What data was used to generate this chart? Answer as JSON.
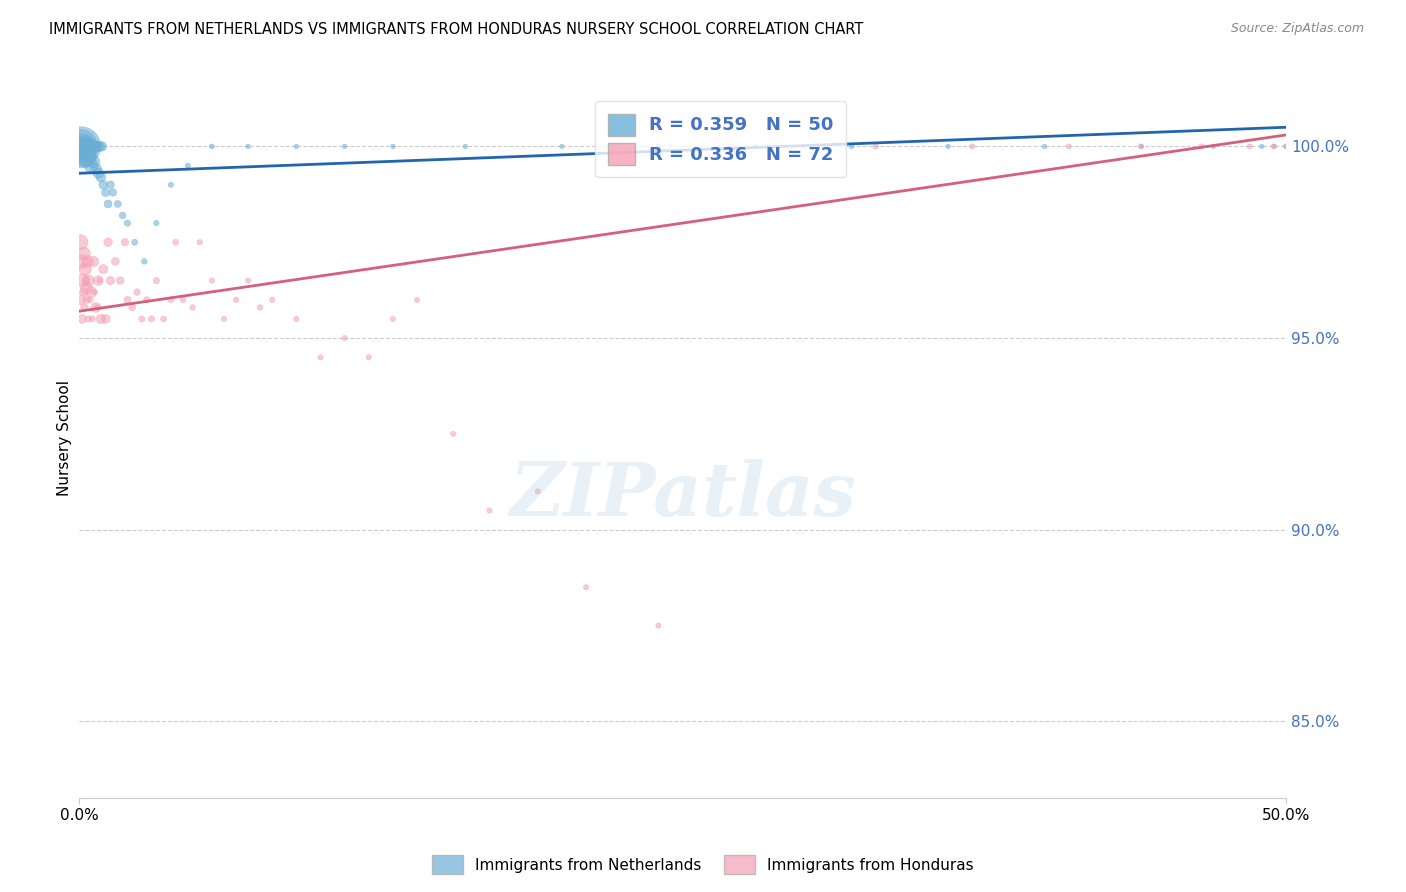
{
  "title": "IMMIGRANTS FROM NETHERLANDS VS IMMIGRANTS FROM HONDURAS NURSERY SCHOOL CORRELATION CHART",
  "source": "Source: ZipAtlas.com",
  "ylabel": "Nursery School",
  "ytick_labels": [
    "85.0%",
    "90.0%",
    "95.0%",
    "100.0%"
  ],
  "ytick_values": [
    85.0,
    90.0,
    95.0,
    100.0
  ],
  "xmin": 0.0,
  "xmax": 50.0,
  "ymin": 83.0,
  "ymax": 101.8,
  "R_netherlands": 0.359,
  "N_netherlands": 50,
  "R_honduras": 0.336,
  "N_honduras": 72,
  "color_netherlands": "#6aaed6",
  "color_honduras": "#f4a0b5",
  "line_color_netherlands": "#2166ac",
  "line_color_honduras": "#d6607a",
  "nl_trend": [
    99.3,
    100.5
  ],
  "hn_trend": [
    95.7,
    100.3
  ],
  "netherlands_x": [
    0.05,
    0.1,
    0.15,
    0.2,
    0.25,
    0.3,
    0.35,
    0.4,
    0.45,
    0.5,
    0.55,
    0.6,
    0.65,
    0.7,
    0.75,
    0.8,
    0.85,
    0.9,
    0.95,
    1.0,
    1.1,
    1.2,
    1.3,
    1.4,
    1.6,
    1.8,
    2.0,
    2.3,
    2.7,
    3.2,
    3.8,
    4.5,
    5.5,
    7.0,
    9.0,
    11.0,
    13.0,
    16.0,
    20.0,
    24.0,
    28.0,
    32.0,
    36.0,
    40.0,
    44.0,
    47.0,
    49.0,
    49.5,
    50.0,
    0.08
  ],
  "netherlands_y": [
    100.0,
    99.8,
    100.0,
    99.9,
    100.0,
    99.7,
    100.0,
    99.8,
    100.0,
    99.5,
    100.0,
    99.6,
    100.0,
    99.4,
    100.0,
    99.3,
    100.0,
    99.2,
    100.0,
    99.0,
    98.8,
    98.5,
    99.0,
    98.8,
    98.5,
    98.2,
    98.0,
    97.5,
    97.0,
    98.0,
    99.0,
    99.5,
    100.0,
    100.0,
    100.0,
    100.0,
    100.0,
    100.0,
    100.0,
    100.0,
    100.0,
    100.0,
    100.0,
    100.0,
    100.0,
    100.0,
    100.0,
    100.0,
    100.0,
    100.0
  ],
  "netherlands_sizes": [
    600,
    400,
    300,
    250,
    200,
    180,
    160,
    140,
    120,
    100,
    90,
    80,
    70,
    65,
    60,
    55,
    50,
    48,
    45,
    40,
    35,
    32,
    30,
    28,
    25,
    22,
    20,
    18,
    16,
    15,
    14,
    13,
    12,
    11,
    10,
    10,
    10,
    10,
    10,
    10,
    10,
    10,
    10,
    10,
    10,
    10,
    10,
    10,
    10,
    800
  ],
  "honduras_x": [
    0.05,
    0.1,
    0.15,
    0.2,
    0.25,
    0.3,
    0.35,
    0.4,
    0.5,
    0.6,
    0.7,
    0.8,
    0.9,
    1.0,
    1.1,
    1.2,
    1.3,
    1.5,
    1.7,
    1.9,
    2.0,
    2.2,
    2.4,
    2.6,
    2.8,
    3.0,
    3.2,
    3.5,
    3.8,
    4.0,
    4.3,
    4.7,
    5.0,
    5.5,
    6.0,
    6.5,
    7.0,
    7.5,
    8.0,
    9.0,
    10.0,
    11.0,
    12.0,
    13.0,
    14.0,
    15.5,
    17.0,
    19.0,
    21.0,
    24.0,
    27.0,
    30.0,
    33.0,
    37.0,
    41.0,
    44.0,
    46.5,
    48.5,
    49.5,
    50.0,
    0.08,
    0.12,
    0.18,
    0.22,
    0.28,
    0.32,
    0.38,
    0.45,
    0.55,
    0.65,
    0.75,
    0.85
  ],
  "honduras_y": [
    97.5,
    97.0,
    96.5,
    97.2,
    96.8,
    96.3,
    97.0,
    96.5,
    96.2,
    97.0,
    95.8,
    96.5,
    95.5,
    96.8,
    95.5,
    97.5,
    96.5,
    97.0,
    96.5,
    97.5,
    96.0,
    95.8,
    96.2,
    95.5,
    96.0,
    95.5,
    96.5,
    95.5,
    96.0,
    97.5,
    96.0,
    95.8,
    97.5,
    96.5,
    95.5,
    96.0,
    96.5,
    95.8,
    96.0,
    95.5,
    94.5,
    95.0,
    94.5,
    95.5,
    96.0,
    92.5,
    90.5,
    91.0,
    88.5,
    87.5,
    100.0,
    100.0,
    100.0,
    100.0,
    100.0,
    100.0,
    100.0,
    100.0,
    100.0,
    100.0,
    96.0,
    95.5,
    96.2,
    95.8,
    96.5,
    96.0,
    95.5,
    96.0,
    95.5,
    96.2,
    95.8,
    96.5
  ],
  "honduras_sizes": [
    120,
    100,
    90,
    85,
    80,
    75,
    70,
    65,
    60,
    55,
    50,
    48,
    45,
    42,
    40,
    38,
    35,
    32,
    30,
    28,
    26,
    24,
    22,
    20,
    20,
    20,
    20,
    18,
    18,
    18,
    16,
    16,
    15,
    15,
    15,
    15,
    15,
    15,
    15,
    14,
    14,
    14,
    14,
    14,
    14,
    14,
    14,
    14,
    14,
    14,
    14,
    14,
    14,
    14,
    14,
    14,
    14,
    14,
    14,
    14,
    50,
    40,
    35,
    30,
    28,
    25,
    22,
    20,
    18,
    16,
    15,
    14
  ]
}
